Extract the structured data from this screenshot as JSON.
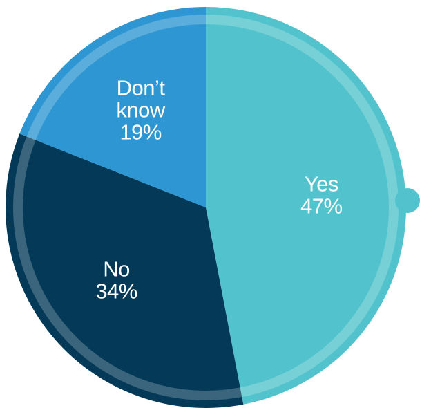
{
  "chart_data": {
    "type": "pie",
    "slices": [
      {
        "label": "Yes",
        "label_lines": [
          "Yes"
        ],
        "value": 47,
        "value_label": "47%",
        "color": "#52c3cc"
      },
      {
        "label": "No",
        "label_lines": [
          "No"
        ],
        "value": 34,
        "value_label": "34%",
        "color": "#043a58"
      },
      {
        "label": "Don’t know",
        "label_lines": [
          "Don’t",
          "know"
        ],
        "value": 19,
        "value_label": "19%",
        "color": "#2e96d2"
      }
    ],
    "start_at": "top",
    "direction": "clockwise",
    "legend": "none"
  }
}
